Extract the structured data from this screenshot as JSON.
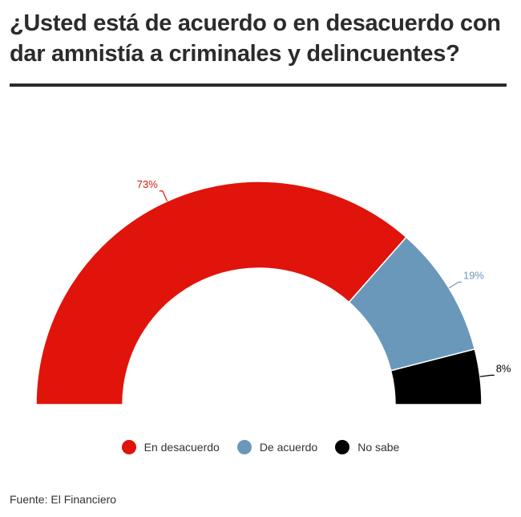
{
  "title": "¿Usted está de acuerdo o en desacuerdo con dar amnistía a criminales y delincuentes?",
  "source": "Fuente: El Financiero",
  "chart_data": {
    "type": "pie",
    "subtype": "semi-donut",
    "categories": [
      "En desacuerdo",
      "De acuerdo",
      "No sabe"
    ],
    "values": [
      73,
      19,
      8
    ],
    "labels": [
      "73%",
      "19%",
      "8%"
    ],
    "colors": [
      "#e0140a",
      "#6a98bb",
      "#000000"
    ],
    "legend": "bottom"
  }
}
